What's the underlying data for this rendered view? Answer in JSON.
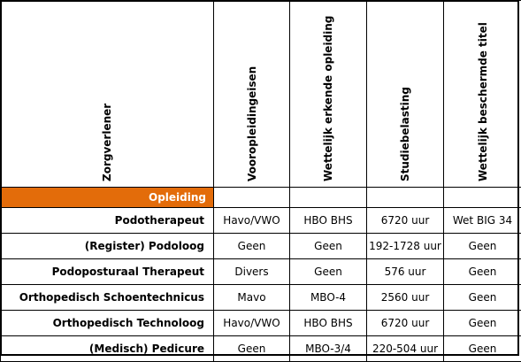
{
  "headers": {
    "col0": "Zorgverlener",
    "col1": "Vooropleidingeisen",
    "col2": "Wettelijk erkende opleiding",
    "col3": "Studiebelasting",
    "col4": "Wettelijk beschermde titel"
  },
  "section": {
    "label": "Opleiding"
  },
  "accent_color": "#e36c0a",
  "rows": [
    {
      "name": "Podotherapeut",
      "vooropleiding": "Havo/VWO",
      "opleiding": "HBO BHS",
      "studiebelasting": "6720 uur",
      "titel": "Wet BIG 34"
    },
    {
      "name": "(Register) Podoloog",
      "vooropleiding": "Geen",
      "opleiding": "Geen",
      "studiebelasting": "192-1728 uur",
      "titel": "Geen"
    },
    {
      "name": "Podoposturaal Therapeut",
      "vooropleiding": "Divers",
      "opleiding": "Geen",
      "studiebelasting": "576 uur",
      "titel": "Geen"
    },
    {
      "name": "Orthopedisch Schoentechnicus",
      "vooropleiding": "Mavo",
      "opleiding": "MBO-4",
      "studiebelasting": "2560 uur",
      "titel": "Geen"
    },
    {
      "name": "Orthopedisch Technoloog",
      "vooropleiding": "Havo/VWO",
      "opleiding": "HBO BHS",
      "studiebelasting": "6720 uur",
      "titel": "Geen"
    },
    {
      "name": "(Medisch) Pedicure",
      "vooropleiding": "Geen",
      "opleiding": "MBO-3/4",
      "studiebelasting": "220-504 uur",
      "titel": "Geen"
    }
  ]
}
